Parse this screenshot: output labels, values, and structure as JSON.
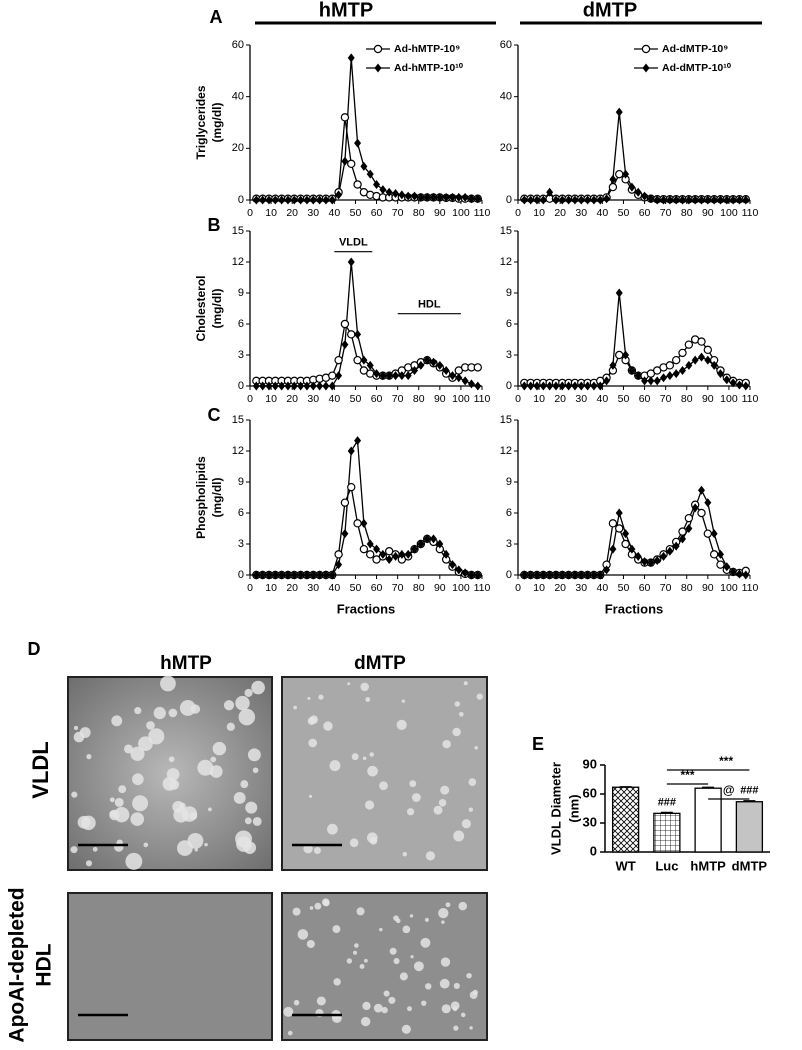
{
  "labels": {
    "panel_a": "A",
    "panel_b": "B",
    "panel_c": "C",
    "panel_d": "D",
    "col_left": "hMTP",
    "col_right": "dMTP",
    "img_col_left": "hMTP",
    "img_col_right": "dMTP",
    "img_row_top": "VLDL",
    "img_row_bottom": [
      "ApoAI-depleted",
      "HDL"
    ]
  },
  "chart_data": [
    {
      "type": "line",
      "x": [
        3,
        6,
        9,
        12,
        15,
        18,
        21,
        24,
        27,
        30,
        33,
        36,
        39,
        42,
        45,
        48,
        51,
        54,
        57,
        60,
        63,
        66,
        69,
        72,
        75,
        78,
        81,
        84,
        87,
        90,
        93,
        96,
        99,
        102,
        105,
        108
      ],
      "xlim": [
        0,
        110
      ],
      "xticks": [
        0,
        10,
        20,
        30,
        40,
        50,
        60,
        70,
        80,
        90,
        100,
        110
      ],
      "ylim": [
        0,
        60
      ],
      "yticks": [
        0,
        20,
        40,
        60
      ],
      "ylabel": [
        "Triglycerides",
        "(mg/dl)"
      ],
      "legend": "upper right",
      "series": [
        {
          "name": "Ad-hMTP-10⁹",
          "marker": "circle",
          "color": "#000000",
          "values": [
            0.5,
            0.5,
            0.5,
            0.5,
            0.5,
            0.5,
            0.5,
            0.5,
            0.5,
            0.5,
            0.5,
            0.5,
            0.5,
            3,
            32,
            14,
            6,
            3,
            2,
            1.5,
            1,
            1,
            1,
            1,
            1,
            1,
            1,
            1,
            1,
            1,
            0.8,
            0.8,
            0.5,
            0.5,
            0.5,
            0.5
          ]
        },
        {
          "name": "Ad-hMTP-10¹⁰",
          "marker": "diamond",
          "color": "#000000",
          "values": [
            0,
            0,
            0,
            0,
            0,
            0,
            0,
            0,
            0,
            0,
            0,
            0,
            0,
            2,
            15,
            55,
            22,
            13,
            10,
            6,
            4,
            3,
            2.5,
            2,
            1.5,
            1.5,
            1,
            1,
            1,
            1,
            1,
            1,
            1,
            1,
            0.5,
            0.5
          ]
        }
      ]
    },
    {
      "type": "line",
      "x": [
        3,
        6,
        9,
        12,
        15,
        18,
        21,
        24,
        27,
        30,
        33,
        36,
        39,
        42,
        45,
        48,
        51,
        54,
        57,
        60,
        63,
        66,
        69,
        72,
        75,
        78,
        81,
        84,
        87,
        90,
        93,
        96,
        99,
        102,
        105,
        108
      ],
      "xlim": [
        0,
        110
      ],
      "xticks": [
        0,
        10,
        20,
        30,
        40,
        50,
        60,
        70,
        80,
        90,
        100,
        110
      ],
      "ylim": [
        0,
        60
      ],
      "yticks": [
        0,
        20,
        40,
        60
      ],
      "legend": "upper right",
      "series": [
        {
          "name": "Ad-dMTP-10⁹",
          "marker": "circle",
          "color": "#000000",
          "values": [
            0.5,
            0.5,
            0.5,
            0.5,
            0.5,
            0.5,
            0.5,
            0.5,
            0.5,
            0.5,
            0.5,
            0.5,
            0.5,
            1,
            5,
            10,
            8,
            4,
            2,
            1,
            0.5,
            0.3,
            0.3,
            0.3,
            0.3,
            0.3,
            0.3,
            0.3,
            0.3,
            0.3,
            0.3,
            0.3,
            0.3,
            0.3,
            0.3,
            0.3
          ]
        },
        {
          "name": "Ad-dMTP-10¹⁰",
          "marker": "diamond",
          "color": "#000000",
          "values": [
            0,
            0,
            0,
            0,
            3,
            0,
            0,
            0,
            0,
            0,
            0,
            0,
            0,
            0.5,
            8,
            34,
            10,
            5,
            3,
            1.5,
            0.5,
            0,
            0,
            0,
            0,
            0,
            0,
            0,
            0,
            0,
            0,
            0,
            0,
            0,
            0,
            0
          ]
        }
      ]
    },
    {
      "type": "line",
      "x": [
        3,
        6,
        9,
        12,
        15,
        18,
        21,
        24,
        27,
        30,
        33,
        36,
        39,
        42,
        45,
        48,
        51,
        54,
        57,
        60,
        63,
        66,
        69,
        72,
        75,
        78,
        81,
        84,
        87,
        90,
        93,
        96,
        99,
        102,
        105,
        108
      ],
      "xlim": [
        0,
        110
      ],
      "xticks": [
        0,
        10,
        20,
        30,
        40,
        50,
        60,
        70,
        80,
        90,
        100,
        110
      ],
      "ylim": [
        0,
        15
      ],
      "yticks": [
        0,
        3,
        6,
        9,
        12,
        15
      ],
      "ylabel": [
        "Cholesterol",
        "(mg/dl)"
      ],
      "annotations": [
        "VLDL",
        "HDL"
      ],
      "series": [
        {
          "marker": "circle",
          "color": "#000000",
          "values": [
            0.5,
            0.5,
            0.5,
            0.5,
            0.5,
            0.5,
            0.5,
            0.5,
            0.5,
            0.6,
            0.7,
            0.8,
            1,
            2.5,
            6,
            5,
            2.5,
            1.5,
            1.2,
            1,
            1,
            1,
            1.2,
            1.5,
            1.8,
            2,
            2.3,
            2.5,
            2.2,
            1.8,
            1.2,
            0.8,
            1.5,
            1.8,
            1.8,
            1.8
          ]
        },
        {
          "marker": "diamond",
          "color": "#000000",
          "values": [
            0,
            0,
            0,
            0,
            0,
            0,
            0,
            0,
            0,
            0,
            0,
            0,
            0,
            1,
            4,
            12,
            5,
            2.5,
            2,
            1.2,
            1,
            1,
            1,
            1,
            1,
            1.5,
            2,
            2.5,
            2.3,
            2,
            1.5,
            1,
            0.8,
            0.5,
            0.2,
            0
          ]
        }
      ]
    },
    {
      "type": "line",
      "x": [
        3,
        6,
        9,
        12,
        15,
        18,
        21,
        24,
        27,
        30,
        33,
        36,
        39,
        42,
        45,
        48,
        51,
        54,
        57,
        60,
        63,
        66,
        69,
        72,
        75,
        78,
        81,
        84,
        87,
        90,
        93,
        96,
        99,
        102,
        105,
        108
      ],
      "xlim": [
        0,
        110
      ],
      "xticks": [
        0,
        10,
        20,
        30,
        40,
        50,
        60,
        70,
        80,
        90,
        100,
        110
      ],
      "ylim": [
        0,
        15
      ],
      "yticks": [
        0,
        3,
        6,
        9,
        12,
        15
      ],
      "series": [
        {
          "marker": "circle",
          "color": "#000000",
          "values": [
            0.3,
            0.3,
            0.3,
            0.3,
            0.3,
            0.3,
            0.3,
            0.3,
            0.3,
            0.3,
            0.3,
            0.3,
            0.5,
            0.8,
            1.5,
            3,
            2.5,
            1.5,
            1,
            1,
            1.2,
            1.5,
            1.8,
            2,
            2.5,
            3.2,
            4,
            4.5,
            4.3,
            3.5,
            2.5,
            1.5,
            0.8,
            0.5,
            0.3,
            0.3
          ]
        },
        {
          "marker": "diamond",
          "color": "#000000",
          "values": [
            0,
            0,
            0,
            0,
            0,
            0,
            0,
            0,
            0,
            0,
            0,
            0,
            0,
            0.5,
            2,
            9,
            3,
            1.5,
            1,
            0.5,
            0.5,
            0.5,
            0.8,
            1,
            1.2,
            1.5,
            2,
            2.5,
            2.8,
            2.5,
            2,
            1.2,
            0.6,
            0.3,
            0.1,
            0
          ]
        }
      ]
    },
    {
      "type": "line",
      "x": [
        3,
        6,
        9,
        12,
        15,
        18,
        21,
        24,
        27,
        30,
        33,
        36,
        39,
        42,
        45,
        48,
        51,
        54,
        57,
        60,
        63,
        66,
        69,
        72,
        75,
        78,
        81,
        84,
        87,
        90,
        93,
        96,
        99,
        102,
        105,
        108
      ],
      "xlim": [
        0,
        110
      ],
      "xticks": [
        0,
        10,
        20,
        30,
        40,
        50,
        60,
        70,
        80,
        90,
        100,
        110
      ],
      "ylim": [
        0,
        15
      ],
      "yticks": [
        0,
        3,
        6,
        9,
        12,
        15
      ],
      "ylabel": [
        "Phospholipids",
        "(mg/dl)"
      ],
      "xlabel": "Fractions",
      "series": [
        {
          "marker": "circle",
          "color": "#000000",
          "values": [
            0,
            0,
            0,
            0,
            0,
            0,
            0,
            0,
            0,
            0,
            0,
            0,
            0,
            2,
            7,
            8.5,
            5,
            2.5,
            2,
            1.5,
            1.8,
            2.3,
            2,
            1.5,
            1.8,
            2.5,
            3,
            3.5,
            3.2,
            2.5,
            1.5,
            0.8,
            0.3,
            0.1,
            0,
            0
          ]
        },
        {
          "marker": "diamond",
          "color": "#000000",
          "values": [
            0,
            0,
            0,
            0,
            0,
            0,
            0,
            0,
            0,
            0,
            0,
            0,
            0,
            1,
            4,
            12,
            13,
            5,
            3,
            2.5,
            2,
            1.5,
            1.8,
            2,
            2,
            2.5,
            3,
            3.5,
            3.5,
            3,
            2,
            1,
            0.5,
            0.2,
            0,
            0
          ]
        }
      ]
    },
    {
      "type": "line",
      "x": [
        3,
        6,
        9,
        12,
        15,
        18,
        21,
        24,
        27,
        30,
        33,
        36,
        39,
        42,
        45,
        48,
        51,
        54,
        57,
        60,
        63,
        66,
        69,
        72,
        75,
        78,
        81,
        84,
        87,
        90,
        93,
        96,
        99,
        102,
        105,
        108
      ],
      "xlim": [
        0,
        110
      ],
      "xticks": [
        0,
        10,
        20,
        30,
        40,
        50,
        60,
        70,
        80,
        90,
        100,
        110
      ],
      "ylim": [
        0,
        15
      ],
      "yticks": [
        0,
        3,
        6,
        9,
        12,
        15
      ],
      "xlabel": "Fractions",
      "series": [
        {
          "marker": "circle",
          "color": "#000000",
          "values": [
            0,
            0,
            0,
            0,
            0,
            0,
            0,
            0,
            0,
            0,
            0,
            0,
            0,
            1,
            5,
            4.5,
            3,
            2,
            1.5,
            1.2,
            1.2,
            1.5,
            2,
            2.5,
            3.2,
            4.2,
            5.5,
            6.8,
            6,
            4,
            2,
            1,
            0.5,
            0.3,
            0.2,
            0.4
          ]
        },
        {
          "marker": "diamond",
          "color": "#000000",
          "values": [
            0,
            0,
            0,
            0,
            0,
            0,
            0,
            0,
            0,
            0,
            0,
            0,
            0,
            0.5,
            2.5,
            6,
            4,
            2.5,
            1.8,
            1.3,
            1.2,
            1.4,
            1.8,
            2.3,
            2.8,
            3.5,
            4.5,
            6.5,
            8.2,
            7,
            4,
            2,
            0.8,
            0.3,
            0.1,
            0
          ]
        }
      ]
    },
    {
      "type": "bar",
      "panel": "E",
      "categories": [
        "WT",
        "Luc",
        "hMTP",
        "dMTP"
      ],
      "values": [
        67,
        40,
        66,
        52
      ],
      "errors": [
        0.5,
        1,
        1,
        1
      ],
      "colors": [
        "#ffffff",
        "#ffffff",
        "#ffffff",
        "#c4c4c4"
      ],
      "hatches": [
        "cross",
        "grid",
        "none",
        "none"
      ],
      "ylim": [
        0,
        90
      ],
      "yticks": [
        0,
        30,
        60,
        90
      ],
      "ylabel": [
        "VLDL Diameter",
        "(nm)"
      ],
      "annotations": [
        {
          "text": "###",
          "category": "Luc"
        },
        {
          "text": "###",
          "category": "dMTP"
        },
        {
          "text": "***",
          "from": "Luc",
          "to": "dMTP"
        },
        {
          "text": "***",
          "from": "Luc",
          "to": "hMTP"
        },
        {
          "text": "@",
          "from": "hMTP",
          "to": "dMTP"
        }
      ]
    }
  ]
}
